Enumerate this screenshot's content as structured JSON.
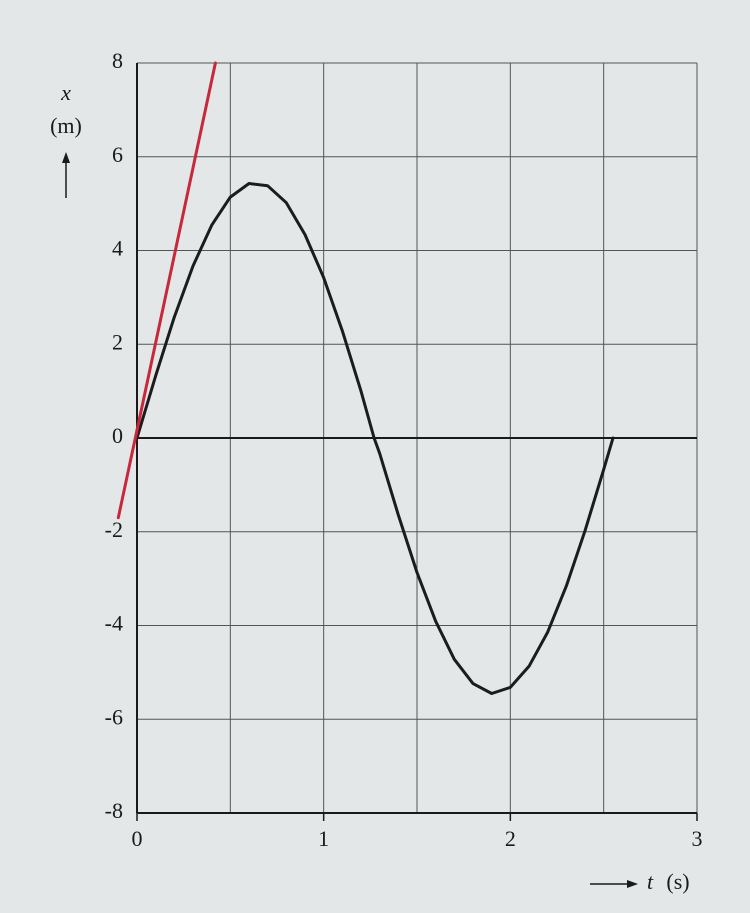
{
  "chart_data": {
    "type": "line",
    "xlabel": [
      "t",
      "(s)"
    ],
    "ylabel": [
      "x",
      "(m)"
    ],
    "xlim": [
      0,
      3
    ],
    "xticks": [
      0,
      1,
      2,
      3
    ],
    "xminorticks": [
      0.5,
      1.5,
      2.5
    ],
    "ylim": [
      -8,
      8
    ],
    "yticks": [
      -8,
      -6,
      -4,
      -2,
      0,
      2,
      4,
      6,
      8
    ],
    "grid": true,
    "series": [
      {
        "color": "#1c1c1c",
        "x": [
          0,
          0.1,
          0.2,
          0.3,
          0.4,
          0.5,
          0.6,
          0.7,
          0.8,
          0.9,
          1.0,
          1.1,
          1.2,
          1.27,
          1.3,
          1.4,
          1.5,
          1.6,
          1.7,
          1.8,
          1.9,
          2.0,
          2.1,
          2.2,
          2.3,
          2.4,
          2.5,
          2.55
        ],
        "values": [
          0,
          1.33,
          2.58,
          3.67,
          4.54,
          5.14,
          5.43,
          5.38,
          5.02,
          4.34,
          3.42,
          2.29,
          1.0,
          0,
          -0.33,
          -1.64,
          -2.87,
          -3.91,
          -4.72,
          -5.24,
          -5.45,
          -5.32,
          -4.87,
          -4.14,
          -3.16,
          -1.98,
          -0.67,
          0
        ]
      },
      {
        "color": "#c8283c",
        "x": [
          -0.1,
          0.42
        ],
        "values": [
          -1.7,
          8
        ]
      }
    ]
  }
}
